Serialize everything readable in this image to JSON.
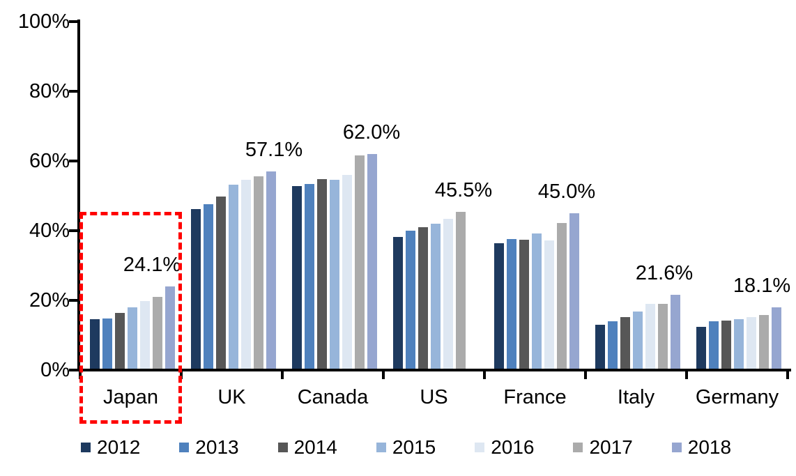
{
  "chart_data": {
    "type": "bar",
    "title": "",
    "xlabel": "",
    "ylabel": "",
    "categories": [
      "Japan",
      "UK",
      "Canada",
      "US",
      "France",
      "Italy",
      "Germany"
    ],
    "series": [
      {
        "name": "2012",
        "color": "#1E3A5F",
        "values": [
          14.6,
          46.3,
          52.9,
          38.3,
          36.4,
          13.1,
          12.5
        ]
      },
      {
        "name": "2013",
        "color": "#4F81BD",
        "values": [
          14.9,
          47.6,
          53.4,
          40.0,
          37.6,
          14.1,
          14.0
        ]
      },
      {
        "name": "2014",
        "color": "#575757",
        "values": [
          16.5,
          49.8,
          54.8,
          41.0,
          37.5,
          15.2,
          14.3
        ]
      },
      {
        "name": "2015",
        "color": "#97B5DA",
        "values": [
          18.0,
          53.2,
          54.6,
          42.1,
          39.2,
          16.8,
          14.6
        ]
      },
      {
        "name": "2016",
        "color": "#DEE7F2",
        "values": [
          19.9,
          54.6,
          56.1,
          43.4,
          37.3,
          19.0,
          15.2
        ]
      },
      {
        "name": "2017",
        "color": "#ABABAB",
        "values": [
          21.1,
          55.7,
          61.6,
          45.5,
          42.3,
          19.1,
          15.9
        ]
      },
      {
        "name": "2018",
        "color": "#96A6D0",
        "values": [
          24.1,
          57.1,
          62.0,
          null,
          45.0,
          21.6,
          18.1
        ]
      }
    ],
    "data_labels": [
      {
        "category": "Japan",
        "text": "24.1%"
      },
      {
        "category": "UK",
        "text": "57.1%"
      },
      {
        "category": "Canada",
        "text": "62.0%"
      },
      {
        "category": "US",
        "text": "45.5%"
      },
      {
        "category": "France",
        "text": "45.0%"
      },
      {
        "category": "Italy",
        "text": "21.6%"
      },
      {
        "category": "Germany",
        "text": "18.1%"
      }
    ],
    "yticks": [
      "100%",
      "80%",
      "60%",
      "40%",
      "20%",
      "0%"
    ],
    "ylim": [
      0,
      100
    ],
    "grid": false,
    "legend_position": "bottom",
    "highlight": {
      "category": "Japan",
      "style": "red-dashed-rectangle",
      "color": "#FF0000"
    }
  }
}
